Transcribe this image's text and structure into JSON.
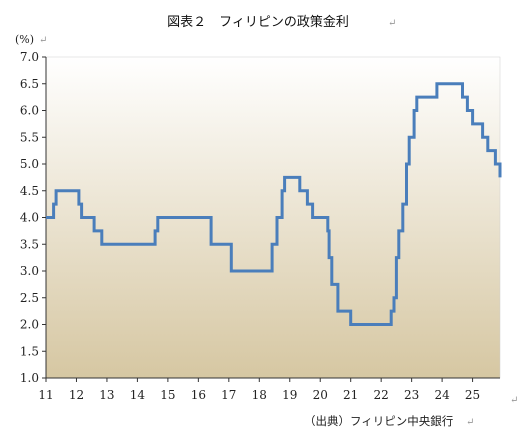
{
  "chart_data": {
    "type": "line",
    "title": "図表２　フィリピンの政策金利",
    "unit_label": "(%)",
    "source": "（出典）フィリピン中央銀行",
    "xlabel": "",
    "ylabel": "",
    "xlim": [
      11,
      25.9
    ],
    "ylim": [
      1.0,
      7.0
    ],
    "yticks": [
      1.0,
      1.5,
      2.0,
      2.5,
      3.0,
      3.5,
      4.0,
      4.5,
      5.0,
      5.5,
      6.0,
      6.5,
      7.0
    ],
    "ytick_labels": [
      "1.0",
      "1.5",
      "2.0",
      "2.5",
      "3.0",
      "3.5",
      "4.0",
      "4.5",
      "5.0",
      "5.5",
      "6.0",
      "6.5",
      "7.0"
    ],
    "xticks": [
      11,
      12,
      13,
      14,
      15,
      16,
      17,
      18,
      19,
      20,
      21,
      22,
      23,
      24,
      25
    ],
    "xtick_labels": [
      "11",
      "12",
      "13",
      "14",
      "15",
      "16",
      "17",
      "18",
      "19",
      "20",
      "21",
      "22",
      "23",
      "24",
      "25"
    ],
    "grid": false,
    "legend": "none",
    "line_color": "#4a7ebb",
    "background_gradient": [
      "#ffffff",
      "#d6c7a2"
    ],
    "series": [
      {
        "step": true,
        "points": [
          [
            11.0,
            4.0
          ],
          [
            11.25,
            4.25
          ],
          [
            11.33,
            4.5
          ],
          [
            12.08,
            4.25
          ],
          [
            12.17,
            4.0
          ],
          [
            12.58,
            3.75
          ],
          [
            12.83,
            3.5
          ],
          [
            14.58,
            3.75
          ],
          [
            14.67,
            4.0
          ],
          [
            16.42,
            3.5
          ],
          [
            17.08,
            3.0
          ],
          [
            18.42,
            3.5
          ],
          [
            18.58,
            4.0
          ],
          [
            18.75,
            4.5
          ],
          [
            18.83,
            4.75
          ],
          [
            19.33,
            4.5
          ],
          [
            19.58,
            4.25
          ],
          [
            19.75,
            4.0
          ],
          [
            20.25,
            3.75
          ],
          [
            20.29,
            3.25
          ],
          [
            20.38,
            2.75
          ],
          [
            20.58,
            2.25
          ],
          [
            21.0,
            2.0
          ],
          [
            22.33,
            2.25
          ],
          [
            22.42,
            2.5
          ],
          [
            22.5,
            3.25
          ],
          [
            22.58,
            3.75
          ],
          [
            22.71,
            4.25
          ],
          [
            22.83,
            5.0
          ],
          [
            22.92,
            5.5
          ],
          [
            23.08,
            6.0
          ],
          [
            23.17,
            6.25
          ],
          [
            23.83,
            6.5
          ],
          [
            24.67,
            6.25
          ],
          [
            24.83,
            6.0
          ],
          [
            25.0,
            5.75
          ],
          [
            25.33,
            5.5
          ],
          [
            25.5,
            5.25
          ],
          [
            25.75,
            5.0
          ],
          [
            25.9,
            4.75
          ]
        ]
      }
    ]
  }
}
